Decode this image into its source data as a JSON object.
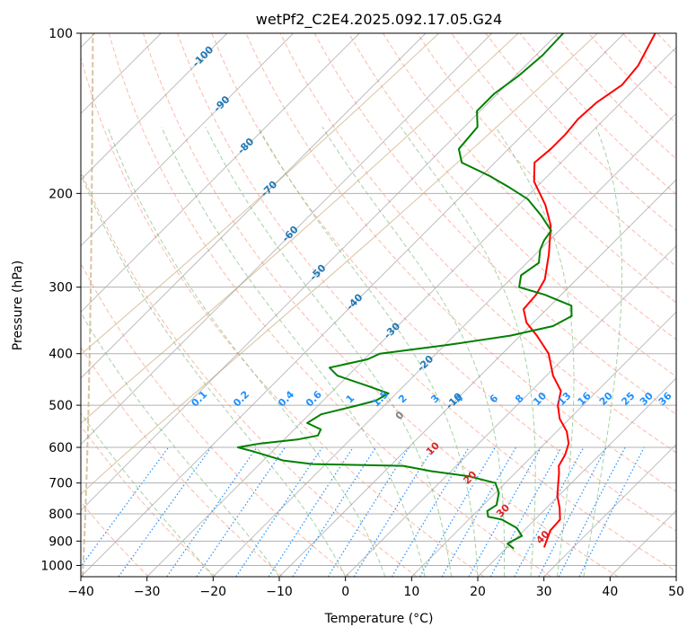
{
  "chart_data": {
    "type": "skew-t",
    "title": "wetPf2_C2E4.2025.092.17.05.G24",
    "xlabel": "Temperature (°C)",
    "ylabel": "Pressure (hPa)",
    "xlim": [
      -40,
      50
    ],
    "ylim": [
      1050,
      100
    ],
    "y_scale": "log",
    "grid": true,
    "x_ticks": [
      -40,
      -30,
      -20,
      -10,
      0,
      10,
      20,
      30,
      40,
      50
    ],
    "x_tick_labels": [
      "−40",
      "−30",
      "−20",
      "−10",
      "0",
      "10",
      "20",
      "30",
      "40",
      "50"
    ],
    "y_ticks": [
      100,
      200,
      300,
      400,
      500,
      600,
      700,
      800,
      900,
      1000
    ],
    "y_tick_labels": [
      "100",
      "200",
      "300",
      "400",
      "500",
      "600",
      "700",
      "800",
      "900",
      "1000"
    ],
    "series": [
      {
        "color": "#ff0000",
        "points": [
          {
            "p": 925,
            "t": 25.6
          },
          {
            "p": 900,
            "t": 25.0
          },
          {
            "p": 860,
            "t": 24.0
          },
          {
            "p": 820,
            "t": 23.8
          },
          {
            "p": 780,
            "t": 22.0
          },
          {
            "p": 740,
            "t": 19.8
          },
          {
            "p": 700,
            "t": 18.0
          },
          {
            "p": 670,
            "t": 16.6
          },
          {
            "p": 650,
            "t": 15.5
          },
          {
            "p": 620,
            "t": 14.8
          },
          {
            "p": 590,
            "t": 13.6
          },
          {
            "p": 560,
            "t": 11.5
          },
          {
            "p": 530,
            "t": 8.5
          },
          {
            "p": 500,
            "t": 6.2
          },
          {
            "p": 470,
            "t": 4.5
          },
          {
            "p": 440,
            "t": 1.0
          },
          {
            "p": 400,
            "t": -3.0
          },
          {
            "p": 370,
            "t": -7.5
          },
          {
            "p": 350,
            "t": -11.0
          },
          {
            "p": 330,
            "t": -13.5
          },
          {
            "p": 310,
            "t": -13.8
          },
          {
            "p": 290,
            "t": -14.8
          },
          {
            "p": 260,
            "t": -18.0
          },
          {
            "p": 230,
            "t": -22.0
          },
          {
            "p": 210,
            "t": -26.0
          },
          {
            "p": 190,
            "t": -31.2
          },
          {
            "p": 175,
            "t": -34.0
          },
          {
            "p": 165,
            "t": -33.6
          },
          {
            "p": 155,
            "t": -33.6
          },
          {
            "p": 145,
            "t": -34.0
          },
          {
            "p": 135,
            "t": -33.7
          },
          {
            "p": 125,
            "t": -32.5
          },
          {
            "p": 115,
            "t": -33.0
          },
          {
            "p": 100,
            "t": -35.3
          }
        ]
      },
      {
        "color": "#008000",
        "points": [
          {
            "p": 930,
            "t": 21.2
          },
          {
            "p": 910,
            "t": 19.5
          },
          {
            "p": 900,
            "t": 19.8
          },
          {
            "p": 880,
            "t": 20.5
          },
          {
            "p": 850,
            "t": 18.5
          },
          {
            "p": 820,
            "t": 15.0
          },
          {
            "p": 810,
            "t": 12.5
          },
          {
            "p": 790,
            "t": 11.5
          },
          {
            "p": 770,
            "t": 12.0
          },
          {
            "p": 730,
            "t": 10.5
          },
          {
            "p": 700,
            "t": 8.5
          },
          {
            "p": 680,
            "t": 3.5
          },
          {
            "p": 665,
            "t": -3.0
          },
          {
            "p": 650,
            "t": -8.0
          },
          {
            "p": 645,
            "t": -22.0
          },
          {
            "p": 635,
            "t": -27.0
          },
          {
            "p": 610,
            "t": -33.0
          },
          {
            "p": 600,
            "t": -35.8
          },
          {
            "p": 590,
            "t": -33.0
          },
          {
            "p": 580,
            "t": -28.0
          },
          {
            "p": 570,
            "t": -25.5
          },
          {
            "p": 555,
            "t": -26.0
          },
          {
            "p": 540,
            "t": -29.0
          },
          {
            "p": 520,
            "t": -28.2
          },
          {
            "p": 500,
            "t": -24.0
          },
          {
            "p": 490,
            "t": -22.0
          },
          {
            "p": 475,
            "t": -21.2
          },
          {
            "p": 460,
            "t": -25.5
          },
          {
            "p": 440,
            "t": -31.6
          },
          {
            "p": 425,
            "t": -34.0
          },
          {
            "p": 410,
            "t": -29.5
          },
          {
            "p": 400,
            "t": -28.5
          },
          {
            "p": 385,
            "t": -19.5
          },
          {
            "p": 370,
            "t": -11.5
          },
          {
            "p": 355,
            "t": -6.5
          },
          {
            "p": 340,
            "t": -5.2
          },
          {
            "p": 325,
            "t": -6.8
          },
          {
            "p": 310,
            "t": -12.5
          },
          {
            "p": 300,
            "t": -17.5
          },
          {
            "p": 285,
            "t": -19.0
          },
          {
            "p": 270,
            "t": -18.2
          },
          {
            "p": 255,
            "t": -20.0
          },
          {
            "p": 245,
            "t": -20.8
          },
          {
            "p": 235,
            "t": -21.2
          },
          {
            "p": 220,
            "t": -25.0
          },
          {
            "p": 205,
            "t": -29.5
          },
          {
            "p": 195,
            "t": -34.0
          },
          {
            "p": 185,
            "t": -39.0
          },
          {
            "p": 175,
            "t": -45.0
          },
          {
            "p": 165,
            "t": -47.5
          },
          {
            "p": 150,
            "t": -48.0
          },
          {
            "p": 140,
            "t": -50.5
          },
          {
            "p": 130,
            "t": -50.5
          },
          {
            "p": 120,
            "t": -49.5
          },
          {
            "p": 110,
            "t": -49.0
          },
          {
            "p": 100,
            "t": -49.2
          }
        ]
      }
    ],
    "overlays": {
      "isotherm_color": "#888888",
      "dry_adiabat_color": "#fa8064",
      "moist_adiabat_color": "#7fbf7f",
      "mixing_ratio_color": "#1e90ff",
      "dry_adiabat_label_color": "#d62728",
      "isotherm_label_color": "#1f77b4",
      "mixing_ratio_label_color": "#1e90ff",
      "curved_line_color": "#d2b48c",
      "isotherm_labels": [
        {
          "text": "-100",
          "t": -100
        },
        {
          "text": "-90",
          "t": -90
        },
        {
          "text": "-80",
          "t": -80
        },
        {
          "text": "-70",
          "t": -70
        },
        {
          "text": "-60",
          "t": -60
        },
        {
          "text": "-50",
          "t": -50
        },
        {
          "text": "-40",
          "t": -40
        },
        {
          "text": "-30",
          "t": -30
        },
        {
          "text": "-20",
          "t": -20
        },
        {
          "text": "-10",
          "t": -10
        },
        {
          "text": "0",
          "t": 0,
          "color": "#808080"
        },
        {
          "text": "10",
          "t": 10,
          "color": "#d62728"
        },
        {
          "text": "20",
          "t": 20,
          "color": "#d62728"
        },
        {
          "text": "30",
          "t": 30,
          "color": "#d62728"
        },
        {
          "text": "40",
          "t": 40,
          "color": "#d62728"
        }
      ],
      "mixing_ratio_labels": [
        "0.1",
        "0.2",
        "0.4",
        "0.6",
        "1",
        "1.5",
        "2",
        "3",
        "4",
        "6",
        "8",
        "10",
        "13",
        "16",
        "20",
        "25",
        "30",
        "36"
      ],
      "mixing_ratio_values": [
        0.1,
        0.2,
        0.4,
        0.6,
        1,
        1.5,
        2,
        3,
        4,
        6,
        8,
        10,
        13,
        16,
        20,
        25,
        30,
        36
      ]
    }
  }
}
